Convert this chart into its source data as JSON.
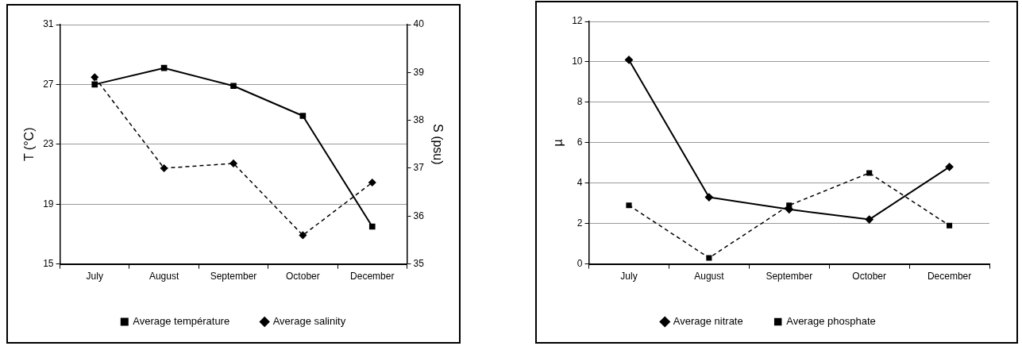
{
  "chart_data": [
    {
      "type": "line",
      "ylabel": "T (°C)",
      "y2label": "S (psu)",
      "categories": [
        "July",
        "August",
        "September",
        "October",
        "December"
      ],
      "series": [
        {
          "name": "Average température",
          "color": "#000000",
          "values": [
            27.0,
            28.1,
            26.9,
            24.9,
            17.5
          ],
          "marker": "square",
          "line_style": "solid"
        },
        {
          "name": "Average salinity",
          "color": "#000000",
          "values": [
            38.9,
            37.0,
            37.1,
            35.6,
            36.7
          ],
          "marker": "diamond",
          "line_style": "dashed",
          "axis": "y2"
        }
      ],
      "ylim": [
        15,
        31
      ],
      "yticks": [
        15,
        19,
        23,
        27,
        31
      ],
      "y2lim": [
        35,
        40
      ],
      "y2ticks": [
        35,
        36,
        37,
        38,
        39,
        40
      ],
      "grid": "y",
      "legend": "bottom"
    },
    {
      "type": "line",
      "ylabel": "µ",
      "categories": [
        "July",
        "August",
        "September",
        "October",
        "December"
      ],
      "series": [
        {
          "name": "Average nitrate",
          "color": "#000000",
          "values": [
            10.1,
            3.3,
            2.7,
            2.2,
            4.8
          ],
          "marker": "diamond",
          "line_style": "solid"
        },
        {
          "name": "Average phosphate",
          "color": "#000000",
          "values": [
            2.9,
            0.3,
            2.9,
            4.5,
            1.9
          ],
          "marker": "square",
          "line_style": "dashed"
        }
      ],
      "ylim": [
        0,
        12
      ],
      "yticks": [
        0,
        2,
        4,
        6,
        8,
        10,
        12
      ],
      "grid": "y",
      "legend": "bottom"
    }
  ]
}
